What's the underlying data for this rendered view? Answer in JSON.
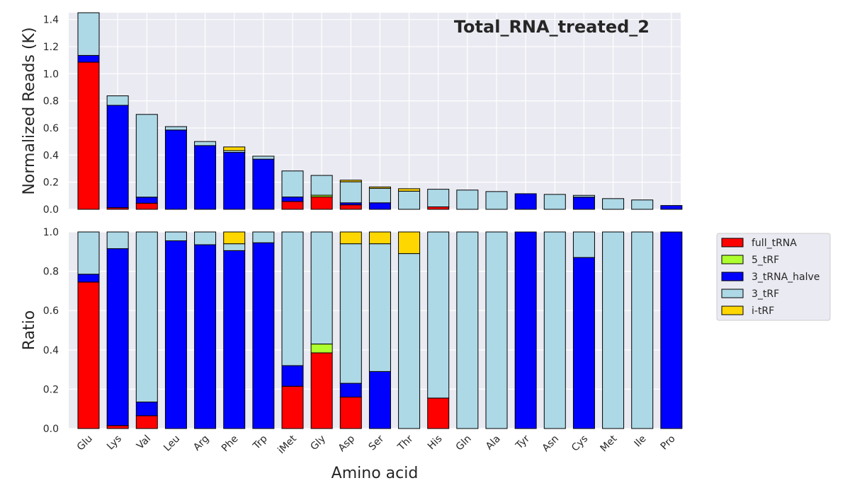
{
  "chart_data": {
    "type": "bar",
    "stacked": true,
    "title": "Total_RNA_treated_2",
    "xlabel": "Amino acid",
    "categories": [
      "Glu",
      "Lys",
      "Val",
      "Leu",
      "Arg",
      "Phe",
      "Trp",
      "iMet",
      "Gly",
      "Asp",
      "Ser",
      "Thr",
      "His",
      "Gln",
      "Ala",
      "Tyr",
      "Asn",
      "Cys",
      "Met",
      "Ile",
      "Pro"
    ],
    "legend": {
      "position": "right",
      "entries": [
        {
          "name": "full_tRNA",
          "color": "#ff0000"
        },
        {
          "name": "5_tRF",
          "color": "#adff2f"
        },
        {
          "name": "3_tRNA_halve",
          "color": "#0000ff"
        },
        {
          "name": "3_tRF",
          "color": "#add8e6"
        },
        {
          "name": "i-tRF",
          "color": "#ffd700"
        }
      ]
    },
    "panels": [
      {
        "name": "reads",
        "ylabel": "Normalized Reads (K)",
        "ylim": [
          0,
          1.45
        ],
        "yticks": [
          "0.0",
          "0.2",
          "0.4",
          "0.6",
          "0.8",
          "1.0",
          "1.2",
          "1.4"
        ],
        "series": [
          {
            "name": "full_tRNA",
            "values": [
              1.085,
              0.012,
              0.045,
              0,
              0,
              0,
              0,
              0.058,
              0.092,
              0.033,
              0,
              0,
              0.018,
              0,
              0,
              0,
              0,
              0,
              0,
              0,
              0
            ]
          },
          {
            "name": "5_tRF",
            "values": [
              0,
              0,
              0,
              0,
              0,
              0,
              0,
              0,
              0.012,
              0,
              0,
              0,
              0,
              0,
              0,
              0,
              0,
              0,
              0,
              0,
              0
            ]
          },
          {
            "name": "3_tRNA_halve",
            "values": [
              0.05,
              0.755,
              0.045,
              0.585,
              0.47,
              0.42,
              0.37,
              0.033,
              0,
              0.015,
              0.048,
              0,
              0,
              0,
              0,
              0.115,
              0,
              0.09,
              0,
              0,
              0.028
            ]
          },
          {
            "name": "3_tRF",
            "values": [
              0.315,
              0.07,
              0.61,
              0.025,
              0.03,
              0.013,
              0.022,
              0.192,
              0.146,
              0.155,
              0.107,
              0.134,
              0.13,
              0.142,
              0.131,
              0,
              0.11,
              0.013,
              0.079,
              0.069,
              0
            ]
          },
          {
            "name": "i-tRF",
            "values": [
              0,
              0,
              0,
              0,
              0,
              0.027,
              0,
              0,
              0,
              0.012,
              0.01,
              0.018,
              0,
              0,
              0,
              0,
              0,
              0,
              0,
              0,
              0
            ]
          }
        ]
      },
      {
        "name": "ratio",
        "ylabel": "Ratio",
        "ylim": [
          0,
          1.0
        ],
        "yticks": [
          "0.0",
          "0.2",
          "0.4",
          "0.6",
          "0.8",
          "1.0"
        ],
        "series": [
          {
            "name": "full_tRNA",
            "values": [
              0.745,
              0.015,
              0.065,
              0,
              0,
              0,
              0,
              0.215,
              0.385,
              0.16,
              0,
              0,
              0.155,
              0,
              0,
              0,
              0,
              0,
              0,
              0,
              0
            ]
          },
          {
            "name": "5_tRF",
            "values": [
              0,
              0,
              0,
              0,
              0,
              0,
              0,
              0,
              0.045,
              0,
              0,
              0,
              0,
              0,
              0,
              0,
              0,
              0,
              0,
              0,
              0
            ]
          },
          {
            "name": "3_tRNA_halve",
            "values": [
              0.04,
              0.9,
              0.07,
              0.955,
              0.935,
              0.905,
              0.945,
              0.105,
              0,
              0.07,
              0.29,
              0,
              0,
              0,
              0,
              1.0,
              0,
              0.87,
              0,
              0,
              1.0
            ]
          },
          {
            "name": "3_tRF",
            "values": [
              0.215,
              0.085,
              0.865,
              0.045,
              0.065,
              0.035,
              0.055,
              0.68,
              0.57,
              0.71,
              0.65,
              0.89,
              0.845,
              1.0,
              1.0,
              0,
              1.0,
              0.13,
              1.0,
              1.0,
              0
            ]
          },
          {
            "name": "i-tRF",
            "values": [
              0,
              0,
              0,
              0,
              0,
              0.06,
              0,
              0,
              0,
              0.06,
              0.06,
              0.11,
              0,
              0,
              0,
              0,
              0,
              0,
              0,
              0,
              0
            ]
          }
        ]
      }
    ]
  }
}
